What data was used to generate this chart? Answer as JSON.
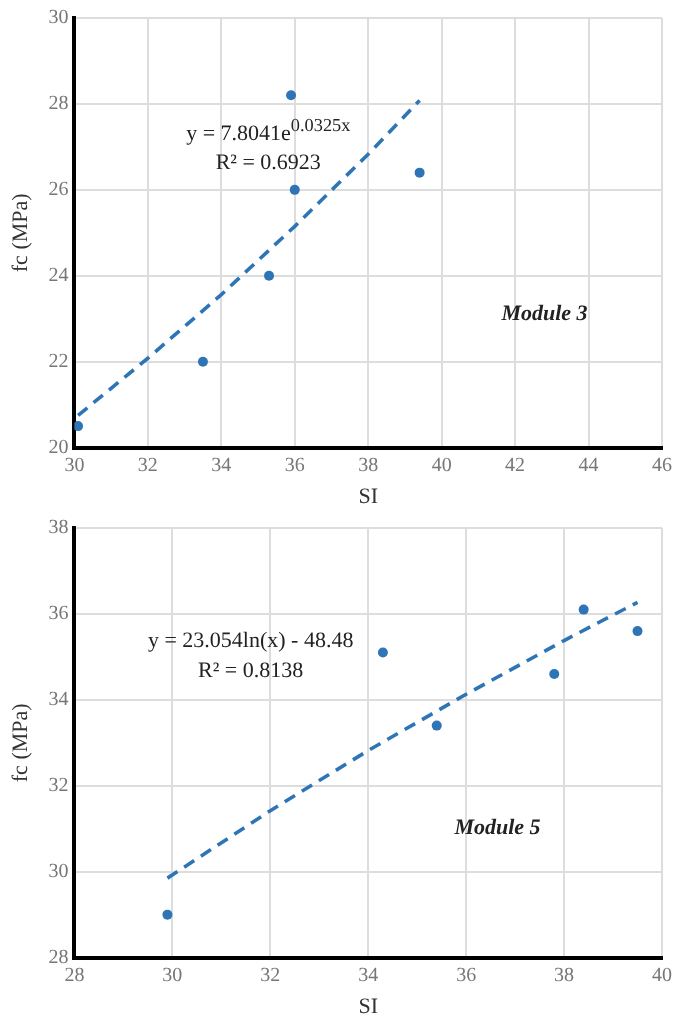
{
  "chart_data": [
    {
      "type": "scatter",
      "xlabel": "SI",
      "ylabel": "fc (MPa)",
      "xlim": [
        30,
        46
      ],
      "xticks": [
        30,
        32,
        34,
        36,
        38,
        40,
        42,
        44,
        46
      ],
      "ylim": [
        20,
        30
      ],
      "yticks": [
        20,
        22,
        24,
        26,
        28,
        30
      ],
      "grid": true,
      "legend": false,
      "annotations": [
        "y = 7.8041e$^{0.0325x}$\nR² = 0.6923",
        "Module 3"
      ],
      "series": [
        {
          "marker": "circle",
          "color": "#2e75b6",
          "x": [
            30.1,
            33.5,
            35.3,
            35.9,
            36,
            39.4
          ],
          "values": [
            20.5,
            22,
            24,
            28.2,
            26,
            26.4
          ]
        },
        {
          "type": "line",
          "marker": "none",
          "line_style": "dashed",
          "color": "#2e75b6",
          "x": [
            30.1,
            32,
            34,
            36,
            38,
            39.4
          ],
          "values": [
            20.75,
            22.08,
            23.56,
            25.15,
            26.83,
            28.08
          ]
        }
      ]
    },
    {
      "type": "scatter",
      "xlabel": "SI",
      "ylabel": "fc (MPa)",
      "xlim": [
        28,
        40
      ],
      "xticks": [
        28,
        30,
        32,
        34,
        36,
        38,
        40
      ],
      "ylim": [
        28,
        38
      ],
      "yticks": [
        28,
        30,
        32,
        34,
        36,
        38
      ],
      "grid": true,
      "legend": false,
      "annotations": [
        "y = 23.054ln(x) - 48.48\nR² = 0.8138",
        "Module 5"
      ],
      "series": [
        {
          "marker": "circle",
          "color": "#2e75b6",
          "x": [
            29.9,
            34.3,
            35.4,
            37.8,
            38.4,
            39.5
          ],
          "values": [
            29,
            35.1,
            33.4,
            34.6,
            36.1,
            35.6
          ]
        },
        {
          "type": "line",
          "marker": "none",
          "line_style": "dashed",
          "color": "#2e75b6",
          "x": [
            29.9,
            32,
            34,
            36,
            38,
            39.5
          ],
          "values": [
            29.85,
            31.42,
            32.82,
            34.13,
            35.38,
            36.27
          ]
        }
      ]
    }
  ]
}
